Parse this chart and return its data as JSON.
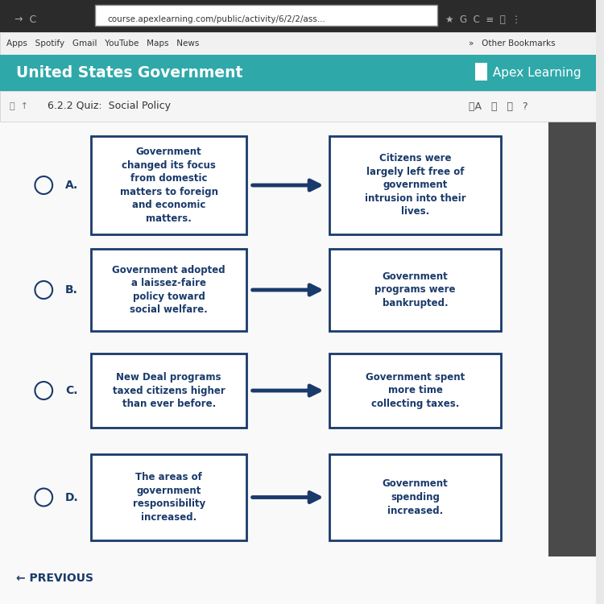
{
  "bg_color": "#e8e8e8",
  "browser_bar_color": "#2b2b2b",
  "browser_bar2_color": "#3c3c3c",
  "bookmarks_bar_color": "#f1f1f1",
  "header_color": "#2fa8aa",
  "header_text": "United States Government",
  "header_text_color": "#ffffff",
  "apex_text": " Apex Learning",
  "quiz_bar_color": "#f5f5f5",
  "quiz_label": "6.2.2 Quiz:  Social Policy",
  "content_bg": "#f9f9f9",
  "right_sidebar_color": "#555555",
  "box_border_color": "#1a3a6b",
  "box_bg_color": "#ffffff",
  "arrow_color": "#1a3a6b",
  "text_color": "#1a3a6b",
  "option_labels": [
    "A.",
    "B.",
    "C.",
    "D."
  ],
  "left_texts": [
    "Government\nchanged its focus\nfrom domestic\nmatters to foreign\nand economic\nmatters.",
    "Government adopted\na laissez-faire\npolicy toward\nsocial welfare.",
    "New Deal programs\ntaxed citizens higher\nthan ever before.",
    "The areas of\ngovernment\nresponsibility\nincreased."
  ],
  "right_texts": [
    "Citizens were\nlargely left free of\ngovernment\nintrusion into their\nlives.",
    "Government\nprograms were\nbankrupted.",
    "Government spent\nmore time\ncollecting taxes.",
    "Government\nspending\nincreased."
  ],
  "footer_text": "← PREVIOUS",
  "url_text": "course.apexlearning.com/public/activity/6/2/2/ass...",
  "bookmarks_text": "Apps   Spotify   Gmail   YouTube   Maps   News",
  "other_bookmarks": "Other Bookmarks"
}
